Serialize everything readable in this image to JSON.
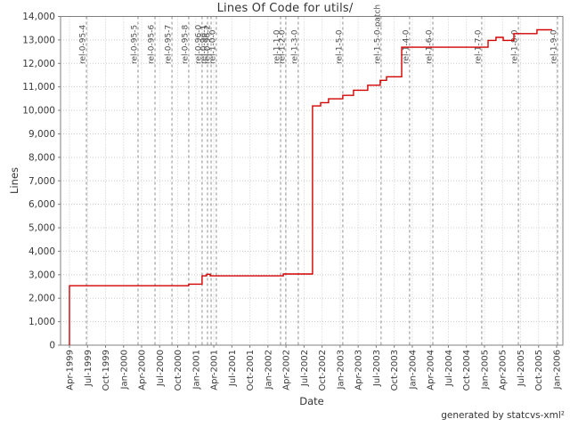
{
  "title": "Lines Of Code for utils/",
  "y_axis_label": "Lines",
  "x_axis_label": "Date",
  "credit": "generated by statcvs-xml²",
  "chart_data": {
    "type": "line",
    "subtype": "step",
    "title": "Lines Of Code for utils/",
    "xlabel": "Date",
    "ylabel": "Lines",
    "ylim": [
      0,
      14000
    ],
    "y_tick_step": 1000,
    "y_tick_labels": [
      "0",
      "1,000",
      "2,000",
      "3,000",
      "4,000",
      "5,000",
      "6,000",
      "7,000",
      "8,000",
      "9,000",
      "10,000",
      "11,000",
      "12,000",
      "13,000",
      "14,000"
    ],
    "x_unit": "quarter index, 0 = Apr-1999, 27 = Jan-2006",
    "x_tick_labels": [
      "Apr-1999",
      "Jul-1999",
      "Oct-1999",
      "Jan-2000",
      "Apr-2000",
      "Jul-2000",
      "Oct-2000",
      "Jan-2001",
      "Apr-2001",
      "Jul-2001",
      "Oct-2001",
      "Jan-2002",
      "Apr-2002",
      "Jul-2002",
      "Oct-2002",
      "Jan-2003",
      "Apr-2003",
      "Jul-2003",
      "Oct-2003",
      "Jan-2004",
      "Apr-2004",
      "Jul-2004",
      "Oct-2004",
      "Jan-2005",
      "Apr-2005",
      "Jul-2005",
      "Oct-2005",
      "Jan-2006"
    ],
    "grid": true,
    "legend": false,
    "colors": {
      "line": "#d40000",
      "grid": "#cccccc",
      "release_line": "#8c8c8c",
      "axis": "#7f7f7f",
      "tick_text": "#3a3a3a",
      "release_text": "#4a4a4a"
    },
    "series": [
      {
        "name": "Lines of Code",
        "points_qv": [
          [
            0.0,
            0
          ],
          [
            0.0,
            2530
          ],
          [
            6.61,
            2530
          ],
          [
            6.61,
            2600
          ],
          [
            7.35,
            2600
          ],
          [
            7.35,
            2950
          ],
          [
            7.6,
            2950
          ],
          [
            7.6,
            3020
          ],
          [
            7.8,
            3020
          ],
          [
            7.8,
            2950
          ],
          [
            11.85,
            2950
          ],
          [
            11.85,
            3030
          ],
          [
            13.47,
            3030
          ],
          [
            13.47,
            10190
          ],
          [
            13.92,
            10190
          ],
          [
            13.92,
            10330
          ],
          [
            14.36,
            10330
          ],
          [
            14.36,
            10490
          ],
          [
            15.15,
            10490
          ],
          [
            15.15,
            10640
          ],
          [
            15.74,
            10640
          ],
          [
            15.74,
            10860
          ],
          [
            16.53,
            10860
          ],
          [
            16.53,
            11070
          ],
          [
            17.22,
            11070
          ],
          [
            17.22,
            11280
          ],
          [
            17.57,
            11280
          ],
          [
            17.57,
            11430
          ],
          [
            18.41,
            11430
          ],
          [
            18.41,
            12690
          ],
          [
            23.2,
            12690
          ],
          [
            23.2,
            12980
          ],
          [
            23.64,
            12980
          ],
          [
            23.64,
            13110
          ],
          [
            24.04,
            13110
          ],
          [
            24.04,
            12980
          ],
          [
            24.63,
            12980
          ],
          [
            24.63,
            13270
          ],
          [
            25.91,
            13270
          ],
          [
            25.91,
            13430
          ],
          [
            26.75,
            13430
          ]
        ]
      }
    ],
    "releases": [
      {
        "q": 0.94,
        "label": "rel-0-95-4"
      },
      {
        "q": 3.8,
        "label": "rel-0-95-5"
      },
      {
        "q": 4.74,
        "label": "rel-0-95-6"
      },
      {
        "q": 5.68,
        "label": "rel-0-95-7"
      },
      {
        "q": 6.61,
        "label": "rel-0-95-8"
      },
      {
        "q": 7.35,
        "label": "rel-0-96-0"
      },
      {
        "q": 7.65,
        "label": "rel-0-96-1"
      },
      {
        "q": 7.85,
        "label": "rel-0-96-2"
      },
      {
        "q": 8.14,
        "label": "rel-1-0-0"
      },
      {
        "q": 11.7,
        "label": "rel-1-1-0"
      },
      {
        "q": 11.99,
        "label": "rel-1-2-0"
      },
      {
        "q": 12.68,
        "label": "rel-1-3-0"
      },
      {
        "q": 15.15,
        "label": "rel-1-5-0"
      },
      {
        "q": 17.27,
        "label": "rel-1-5-0-patch"
      },
      {
        "q": 18.85,
        "label": "rel-1-4-0"
      },
      {
        "q": 20.14,
        "label": "rel-1-6-0"
      },
      {
        "q": 22.85,
        "label": "rel-1-7-0"
      },
      {
        "q": 24.88,
        "label": "rel-1-8-0"
      },
      {
        "q": 27.05,
        "label": "rel-1-9-0"
      }
    ]
  }
}
